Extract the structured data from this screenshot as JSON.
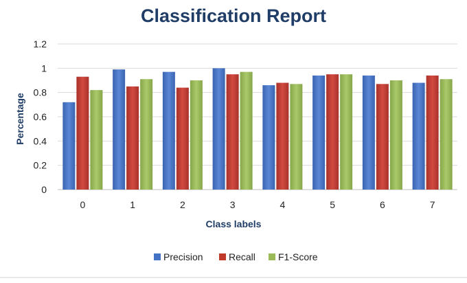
{
  "chart_data": {
    "type": "bar",
    "title": "Classification Report",
    "xlabel": "Class labels",
    "ylabel": "Percentage",
    "categories": [
      "0",
      "1",
      "2",
      "3",
      "4",
      "5",
      "6",
      "7"
    ],
    "ylim": [
      0,
      1.2
    ],
    "yticks": [
      "0",
      "0.2",
      "0.4",
      "0.6",
      "0.8",
      "1",
      "1.2"
    ],
    "grid": true,
    "legend_position": "bottom",
    "series": [
      {
        "name": "Precision",
        "color": "#4472c4",
        "values": [
          0.72,
          0.99,
          0.97,
          1.0,
          0.86,
          0.94,
          0.94,
          0.88
        ]
      },
      {
        "name": "Recall",
        "color": "#c0392b",
        "values": [
          0.93,
          0.85,
          0.84,
          0.95,
          0.88,
          0.95,
          0.87,
          0.94
        ]
      },
      {
        "name": "F1-Score",
        "color": "#9bbb59",
        "values": [
          0.82,
          0.91,
          0.9,
          0.97,
          0.87,
          0.95,
          0.9,
          0.91
        ]
      }
    ]
  }
}
